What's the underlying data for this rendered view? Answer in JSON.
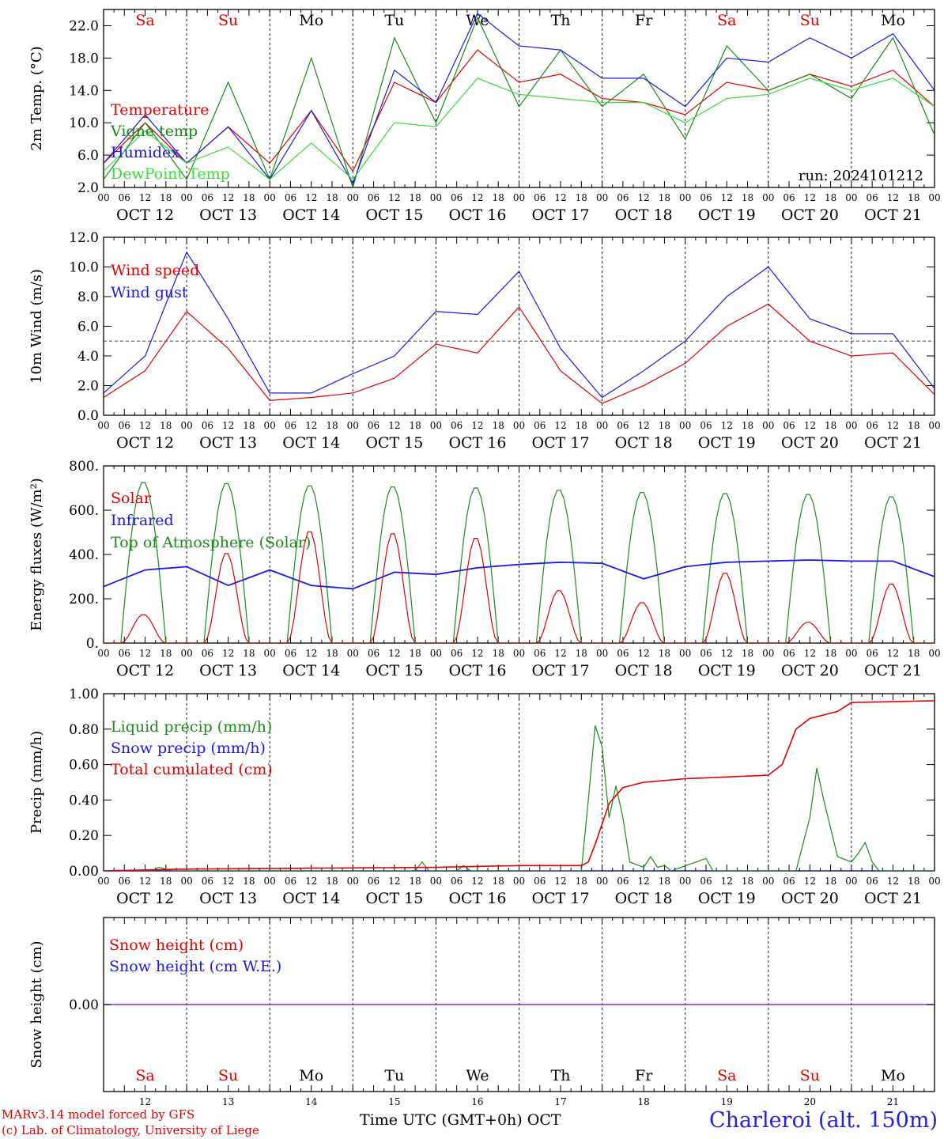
{
  "days": [
    "Sa",
    "Su",
    "Mo",
    "Tu",
    "We",
    "Th",
    "Fr",
    "Sa",
    "Su",
    "Mo"
  ],
  "weekend_days": [
    0,
    1,
    7,
    8
  ],
  "dates": [
    "OCT 12",
    "OCT 13",
    "OCT 14",
    "OCT 15",
    "OCT 16",
    "OCT 17",
    "OCT 18",
    "OCT 19",
    "OCT 20",
    "OCT 21"
  ],
  "day_numbers": [
    "12",
    "13",
    "14",
    "15",
    "16",
    "17",
    "18",
    "19",
    "20",
    "21"
  ],
  "hour_labels": [
    "00",
    "06",
    "12",
    "18"
  ],
  "run_label": "run: 2024101212",
  "colors": {
    "red": "#e00000",
    "green": "#1a8a1a",
    "blue": "#1a1ae0",
    "light_green": "#33dd33",
    "purple": "#8a2be2"
  },
  "footer": {
    "model": "MARv3.14 model forced by GFS",
    "lab": "(c) Lab. of Climatology, University of Liege",
    "axis_label": "Time UTC (GMT+0h)",
    "month": "OCT",
    "station": "Charleroi (alt. 150m)"
  },
  "chart_data": [
    {
      "type": "line",
      "ylabel": "2m Temp. (°C)",
      "ylim": [
        2,
        24
      ],
      "yticks": [
        "2.0",
        "6.0",
        "10.0",
        "14.0",
        "18.0",
        "22.0"
      ],
      "yticks_values": [
        2,
        6,
        10,
        14,
        18,
        22
      ],
      "legend": [
        "Temperature",
        "Vigne temp",
        "Humidex",
        "DewPoint Temp"
      ],
      "x_hours": [
        0,
        12,
        24,
        36,
        48,
        60,
        72,
        84,
        96,
        108,
        120,
        132,
        144,
        156,
        168,
        180,
        192,
        204,
        216,
        228,
        240
      ],
      "series": [
        {
          "name": "Temperature",
          "color": "red",
          "values": [
            5,
            10,
            5,
            9.5,
            5,
            11.5,
            4,
            15,
            12.5,
            19,
            15,
            16,
            13,
            12.5,
            11,
            15,
            14,
            16,
            14.5,
            16.5,
            12
          ]
        },
        {
          "name": "Vigne temp",
          "color": "green",
          "values": [
            3,
            10,
            3,
            15,
            3,
            18,
            2,
            20.5,
            10,
            23,
            12,
            19,
            12,
            16,
            8,
            19.5,
            14,
            16,
            13,
            20.5,
            8.5
          ]
        },
        {
          "name": "Humidex",
          "color": "blue",
          "values": [
            5,
            11,
            5,
            9.5,
            3,
            11.5,
            2.5,
            16.5,
            12.5,
            23.5,
            19.5,
            19,
            15.5,
            15.5,
            12,
            18,
            17.5,
            20.5,
            18,
            21,
            14
          ]
        },
        {
          "name": "DewPoint Temp",
          "color": "light_green",
          "values": [
            4,
            9,
            5,
            7,
            3,
            7.5,
            3,
            10,
            9.5,
            15.5,
            13.5,
            13,
            12.5,
            12.5,
            10,
            13,
            13.5,
            15.5,
            14,
            15.5,
            12
          ]
        }
      ]
    },
    {
      "type": "line",
      "ylabel": "10m Wind (m/s)",
      "ylim": [
        0,
        12
      ],
      "yticks": [
        "0.0",
        "2.0",
        "4.0",
        "6.0",
        "8.0",
        "10.0",
        "12.0"
      ],
      "yticks_values": [
        0,
        2,
        4,
        6,
        8,
        10,
        12
      ],
      "reference_line": 5,
      "legend": [
        "Wind speed",
        "Wind gust"
      ],
      "x_hours": [
        0,
        12,
        24,
        36,
        48,
        60,
        72,
        84,
        96,
        108,
        120,
        132,
        144,
        156,
        168,
        180,
        192,
        204,
        216,
        228,
        240
      ],
      "series": [
        {
          "name": "Wind speed",
          "color": "red",
          "values": [
            1.2,
            3,
            7,
            4.5,
            1,
            1.2,
            1.5,
            2.5,
            4.8,
            4.2,
            7.3,
            3,
            0.8,
            2,
            3.5,
            6,
            7.5,
            5,
            4,
            4.2,
            1.4
          ]
        },
        {
          "name": "Wind gust",
          "color": "blue",
          "values": [
            1.5,
            4,
            11,
            6.5,
            1.5,
            1.5,
            2.8,
            4,
            7,
            6.8,
            9.7,
            4.5,
            1.2,
            3,
            5,
            8,
            10,
            6.5,
            5.5,
            5.5,
            1.8
          ]
        }
      ]
    },
    {
      "type": "line",
      "ylabel": "Energy fluxes (W/m²)",
      "ylim": [
        0,
        800
      ],
      "yticks": [
        "0.",
        "200.",
        "400.",
        "600.",
        "800."
      ],
      "yticks_values": [
        0,
        200,
        400,
        600,
        800
      ],
      "legend": [
        "Solar",
        "Infrared",
        "Top of Atmosphere (Solar)"
      ],
      "toa_peaks": [
        730,
        725,
        715,
        710,
        705,
        695,
        685,
        680,
        675,
        665
      ],
      "solar_peaks": [
        130,
        410,
        510,
        500,
        480,
        240,
        185,
        320,
        95,
        270
      ],
      "infrared": {
        "x_hours": [
          0,
          12,
          24,
          36,
          48,
          60,
          72,
          84,
          96,
          108,
          120,
          132,
          144,
          156,
          168,
          180,
          192,
          204,
          216,
          228,
          240
        ],
        "values": [
          255,
          330,
          345,
          260,
          330,
          260,
          245,
          320,
          310,
          340,
          355,
          365,
          360,
          290,
          345,
          365,
          370,
          375,
          370,
          370,
          300
        ]
      }
    },
    {
      "type": "line",
      "ylabel": "Precip (mm/h)",
      "ylim": [
        0,
        1
      ],
      "yticks": [
        "0.00",
        "0.20",
        "0.40",
        "0.60",
        "0.80",
        "1.00"
      ],
      "yticks_values": [
        0,
        0.2,
        0.4,
        0.6,
        0.8,
        1.0
      ],
      "legend": [
        "Liquid precip (mm/h)",
        "Snow precip (mm/h)",
        "Total cumulated (cm)"
      ],
      "liquid": {
        "x_hours": [
          0,
          14,
          16,
          20,
          90,
          92,
          94,
          102,
          104,
          106,
          138,
          140,
          142,
          144,
          146,
          148,
          150,
          152,
          156,
          158,
          160,
          162,
          164,
          174,
          176,
          200,
          204,
          206,
          208,
          212,
          216,
          218,
          220,
          222,
          224,
          240
        ],
        "values": [
          0,
          0,
          0.02,
          0,
          0,
          0.05,
          0,
          0,
          0.03,
          0,
          0,
          0.4,
          0.82,
          0.7,
          0.3,
          0.48,
          0.3,
          0.05,
          0.02,
          0.08,
          0.02,
          0.03,
          0,
          0.07,
          0,
          0,
          0.3,
          0.58,
          0.4,
          0.08,
          0.05,
          0.1,
          0.16,
          0.05,
          0,
          0
        ]
      },
      "cumulated": {
        "x_hours": [
          0,
          24,
          96,
          120,
          138,
          140,
          142,
          146,
          150,
          156,
          168,
          192,
          196,
          200,
          204,
          212,
          216,
          240
        ],
        "values": [
          0,
          0.01,
          0.02,
          0.03,
          0.03,
          0.05,
          0.15,
          0.38,
          0.47,
          0.5,
          0.52,
          0.54,
          0.6,
          0.8,
          0.86,
          0.9,
          0.95,
          0.96
        ]
      }
    },
    {
      "type": "line",
      "ylabel": "Snow height (cm)",
      "yticks": [
        "0.00"
      ],
      "yticks_values": [
        0
      ],
      "legend": [
        "Snow height (cm)",
        "Snow height (cm W.E.)"
      ],
      "value": 0
    }
  ]
}
